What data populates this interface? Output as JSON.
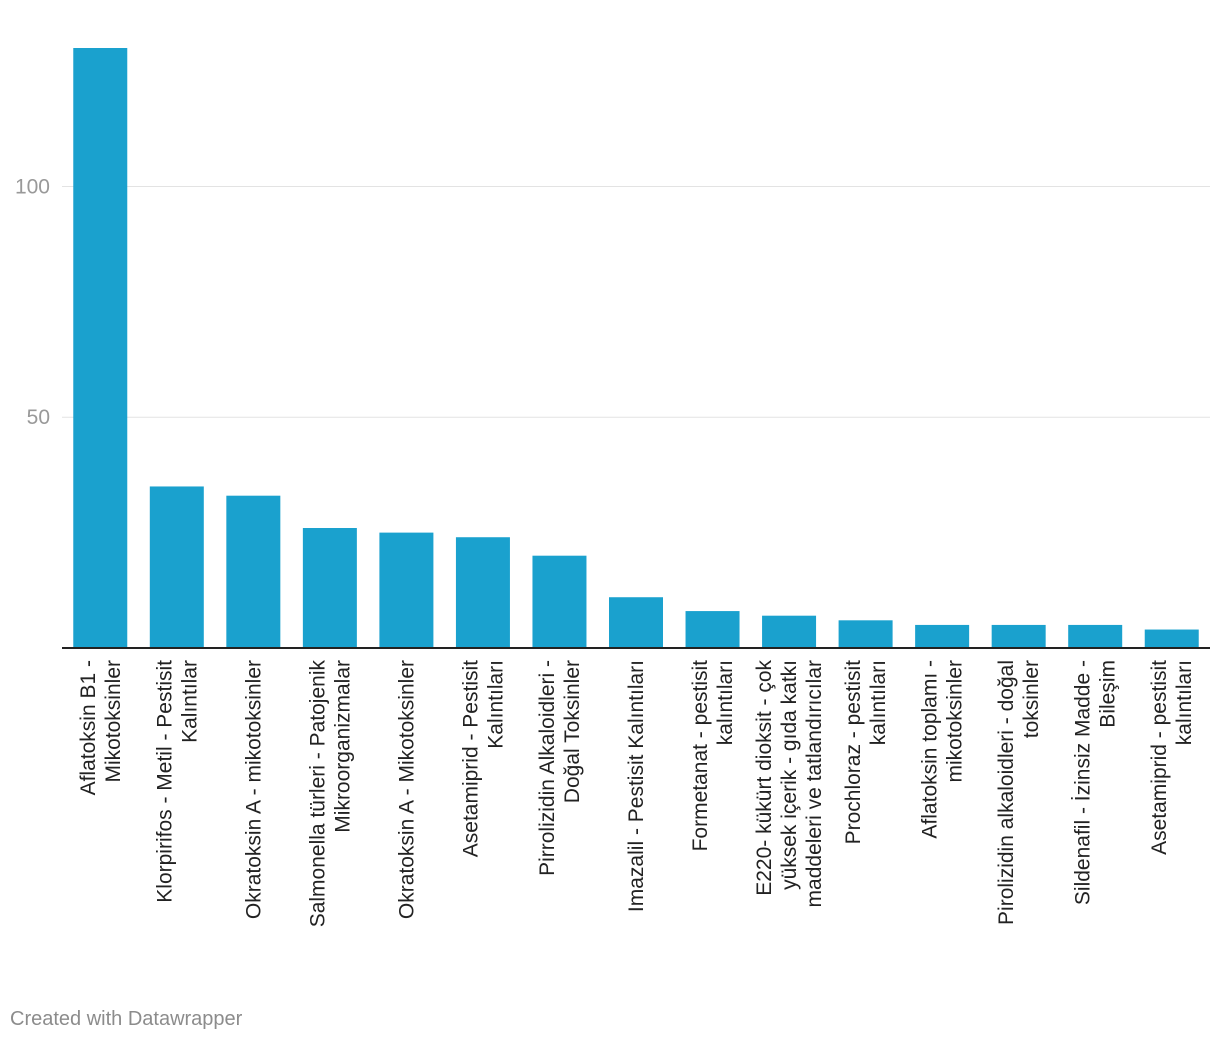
{
  "chart_data": {
    "type": "bar",
    "categories": [
      [
        "Aflatoksin B1 -",
        "Mikotoksinler"
      ],
      [
        "Klorpirifos - Metil - Pestisit",
        "Kalıntılar"
      ],
      [
        "Okratoksin A - mikotoksinler"
      ],
      [
        "Salmonella türleri - Patojenik",
        "Mikroorganizmalar"
      ],
      [
        "Okratoksin A - Mikotoksinler"
      ],
      [
        "Asetamiprid - Pestisit",
        "Kalıntıları"
      ],
      [
        "Pirrolizidin Alkaloidleri -",
        "Doğal Toksinler"
      ],
      [
        "Imazalil - Pestisit Kalıntıları"
      ],
      [
        "Formetanat - pestisit",
        "kalıntıları"
      ],
      [
        "E220- kükürt dioksit - çok",
        "yüksek içerik - gıda katkı",
        "maddeleri ve tatlandırıcılar"
      ],
      [
        "Prochloraz - pestisit",
        "kalıntıları"
      ],
      [
        "Aflatoksin toplamı -",
        "mikotoksinler"
      ],
      [
        "Pirolizidin alkaloidleri - doğal",
        "toksinler"
      ],
      [
        "Sildenafil - İzinsiz Madde -",
        "Bileşim"
      ],
      [
        "Asetamiprid - pestisit",
        "kalıntıları"
      ]
    ],
    "values": [
      130,
      35,
      33,
      26,
      25,
      24,
      20,
      11,
      8,
      7,
      6,
      5,
      5,
      5,
      4
    ],
    "yticks": [
      50,
      100
    ],
    "ylim": [
      0,
      130
    ],
    "grid": true,
    "bar_color": "#1aa1ce"
  },
  "footer": {
    "credit": "Created with Datawrapper"
  }
}
